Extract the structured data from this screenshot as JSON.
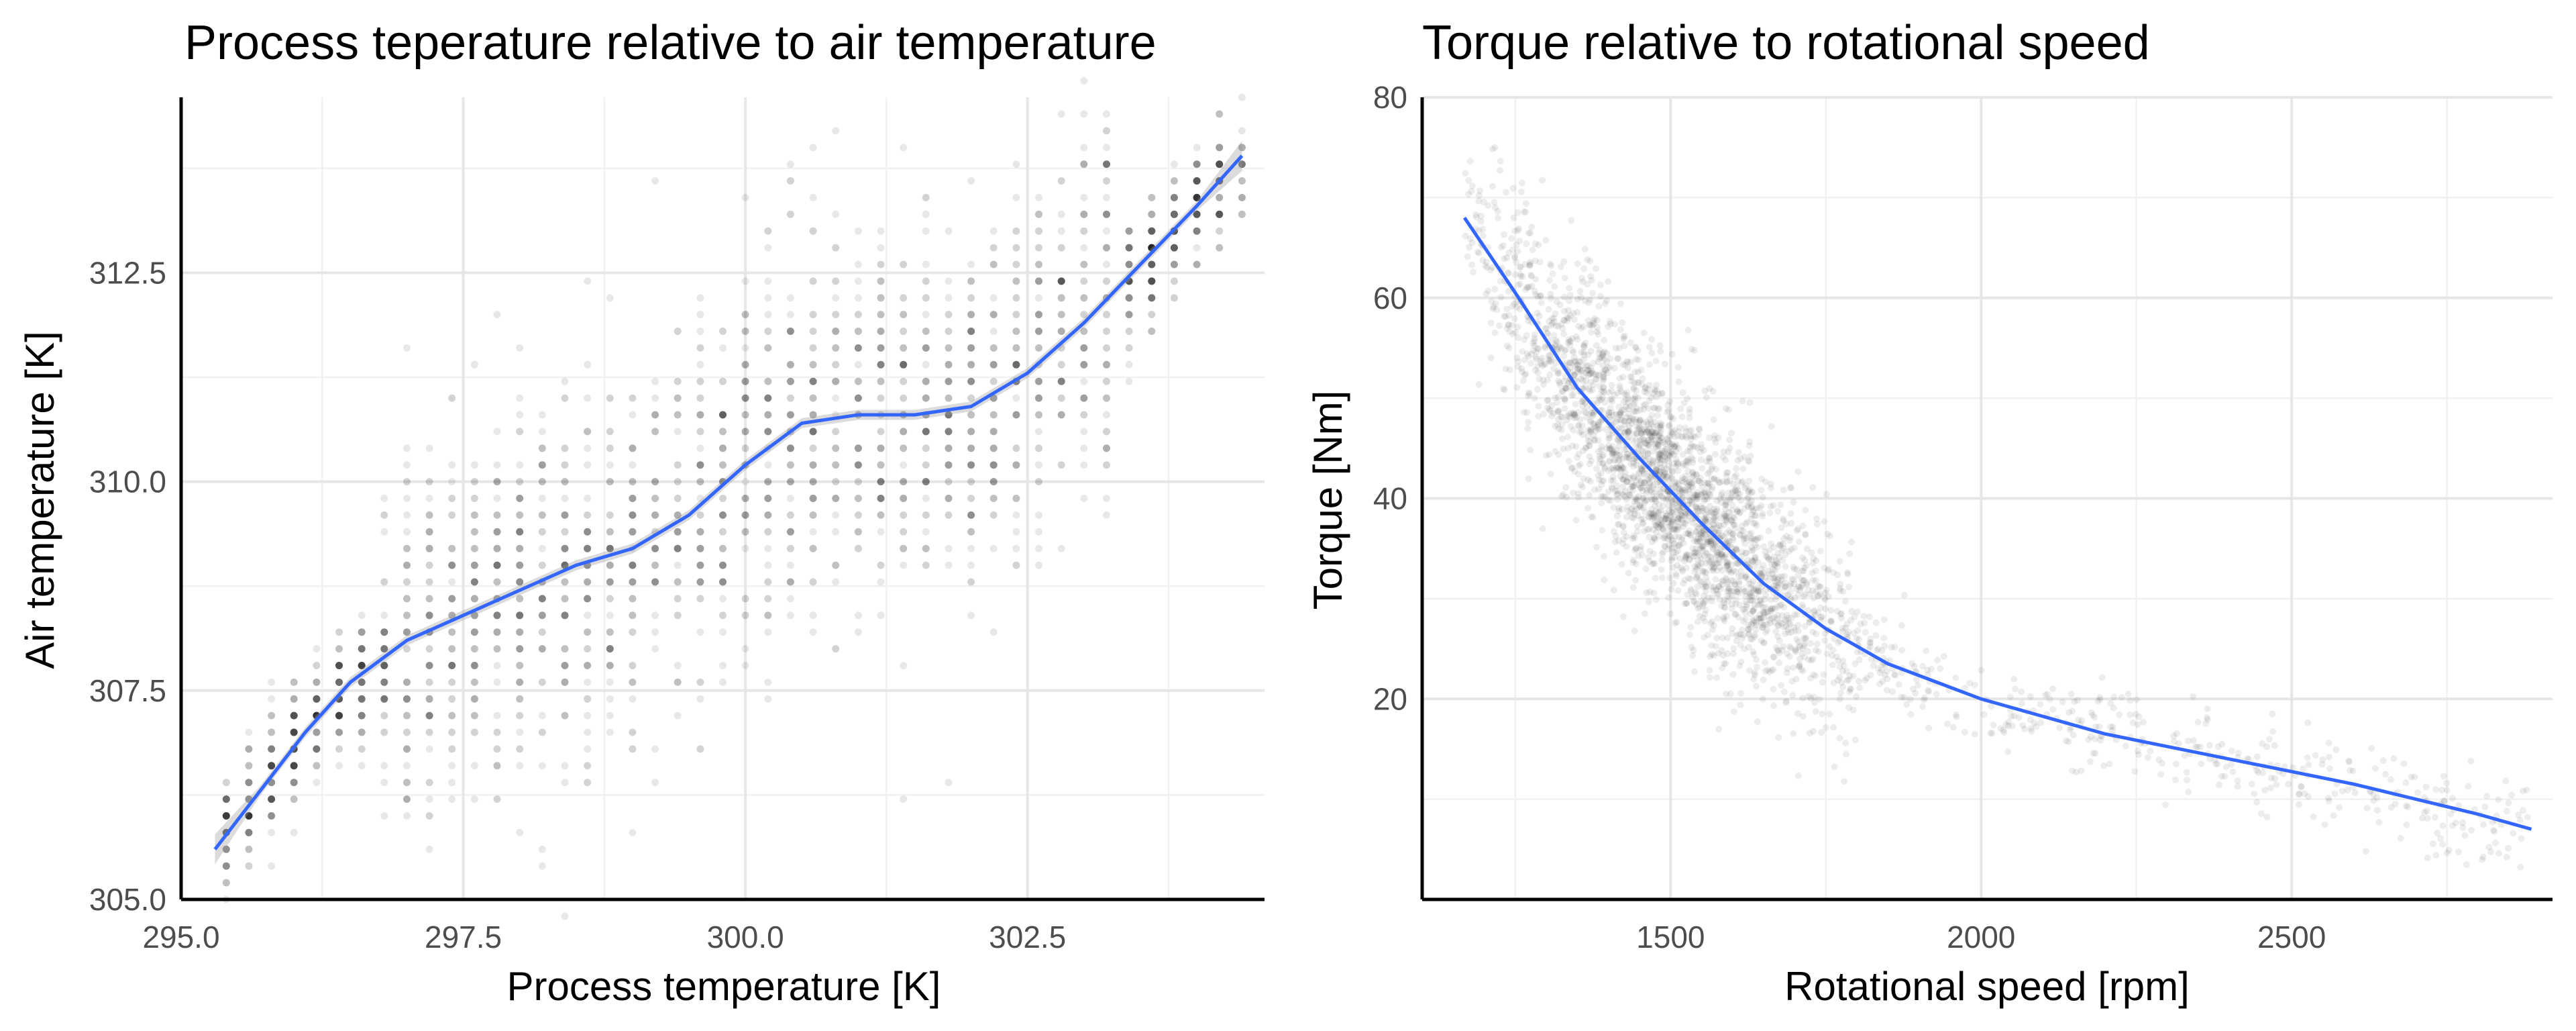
{
  "chart_data": [
    {
      "type": "scatter",
      "title": "Process teperature relative to air temperature",
      "xlabel": "Process temperature [K]",
      "ylabel": "Air temperature [K]",
      "xlim": [
        295.0,
        304.6
      ],
      "ylim": [
        305.0,
        314.6
      ],
      "x_ticks": [
        "295.0",
        "297.5",
        "300.0",
        "302.5"
      ],
      "x_tick_values": [
        295.0,
        297.5,
        300.0,
        302.5
      ],
      "y_ticks": [
        "305.0",
        "307.5",
        "310.0",
        "312.5"
      ],
      "y_tick_values": [
        305.0,
        307.5,
        310.0,
        312.5
      ],
      "grid": true,
      "point_color": "#000000",
      "series": [
        {
          "kind": "points",
          "description_ranges": [
            {
              "x": [
                295.3,
                296.5
              ],
              "y": [
                305.5,
                307.8
              ]
            },
            {
              "x": [
                296.5,
                297.8
              ],
              "y": [
                307.0,
                309.5
              ]
            },
            {
              "x": [
                297.4,
                299.0
              ],
              "y": [
                307.0,
                310.5
              ]
            },
            {
              "x": [
                298.3,
                300.3
              ],
              "y": [
                308.2,
                312.0
              ]
            },
            {
              "x": [
                299.5,
                301.5
              ],
              "y": [
                308.5,
                312.2
              ]
            },
            {
              "x": [
                300.7,
                302.0
              ],
              "y": [
                309.5,
                311.8
              ]
            },
            {
              "x": [
                302.0,
                303.3
              ],
              "y": [
                310.0,
                312.5
              ]
            },
            {
              "x": [
                302.8,
                304.4
              ],
              "y": [
                311.5,
                313.9
              ]
            }
          ]
        },
        {
          "kind": "smooth",
          "color": "#3366ff",
          "x": [
            295.3,
            295.7,
            296.1,
            296.5,
            297.0,
            297.5,
            298.0,
            298.5,
            299.0,
            299.5,
            300.0,
            300.5,
            301.0,
            301.5,
            302.0,
            302.5,
            303.0,
            303.5,
            304.0,
            304.4
          ],
          "y": [
            305.6,
            306.3,
            307.0,
            307.6,
            308.1,
            308.4,
            308.7,
            309.0,
            309.2,
            309.6,
            310.2,
            310.7,
            310.8,
            310.8,
            310.9,
            311.3,
            311.9,
            312.6,
            313.3,
            313.9
          ]
        }
      ]
    },
    {
      "type": "scatter",
      "title": "Torque relative to rotational speed",
      "xlabel": "Rotational speed [rpm]",
      "ylabel": "Torque [Nm]",
      "xlim": [
        1100,
        2920
      ],
      "ylim": [
        0,
        80
      ],
      "x_ticks": [
        "1500",
        "2000",
        "2500"
      ],
      "x_tick_values": [
        1500,
        2000,
        2500
      ],
      "y_ticks": [
        "20",
        "40",
        "60",
        "80"
      ],
      "y_tick_values": [
        20,
        40,
        60,
        80
      ],
      "grid": true,
      "point_color": "#000000",
      "series": [
        {
          "kind": "points",
          "description": "dense cloud following the fitted curve, heaviest around 1350–1650 rpm and 30–55 Nm, thinning toward 2900 rpm"
        },
        {
          "kind": "smooth",
          "color": "#3366ff",
          "x": [
            1168,
            1250,
            1350,
            1450,
            1550,
            1650,
            1750,
            1850,
            2000,
            2200,
            2400,
            2600,
            2800,
            2886
          ],
          "y": [
            68,
            60.5,
            51,
            44,
            37.5,
            31.5,
            27,
            23.5,
            20,
            16.5,
            14,
            11.5,
            8.5,
            7
          ]
        }
      ]
    }
  ]
}
